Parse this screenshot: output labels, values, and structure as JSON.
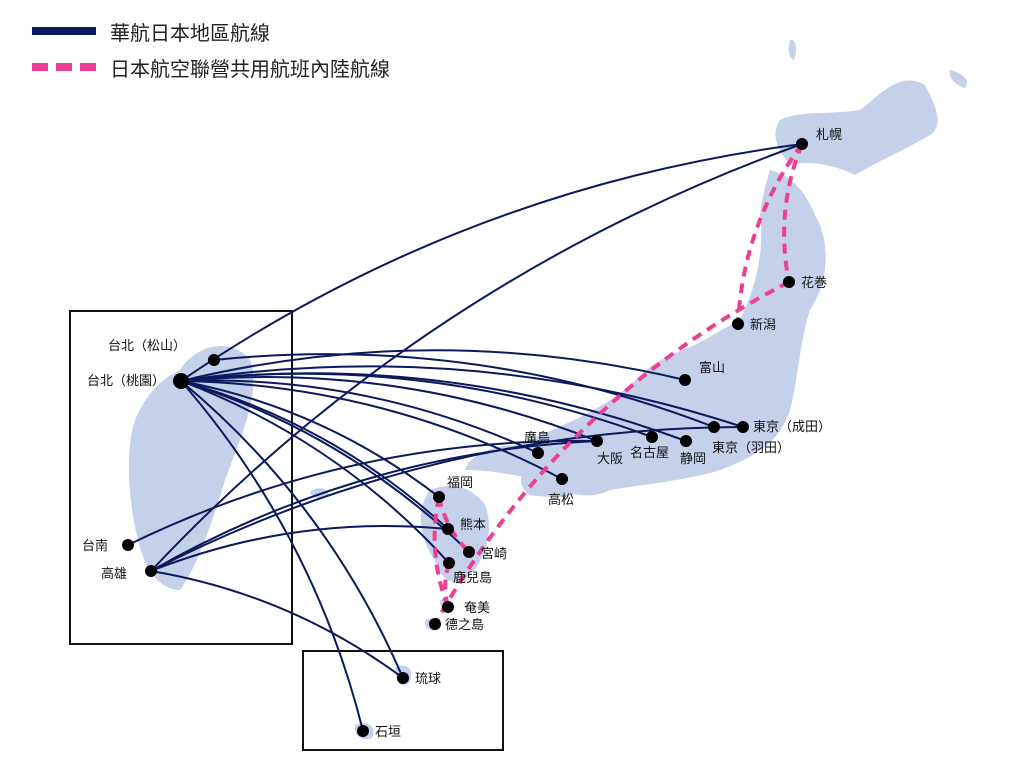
{
  "legend": {
    "cal_label": "華航日本地區航線",
    "jal_label": "日本航空聯營共用航班內陸航線",
    "cal_color": "#0b1a5c",
    "jal_color": "#ec3f93"
  },
  "colors": {
    "land": "#c5d0ea",
    "box": "#111111",
    "city_dot": "#000000"
  },
  "cities": {
    "tpe_songshan": "台北（松山）",
    "tpe_taoyuan": "台北（桃園）",
    "tainan": "台南",
    "kaohsiung": "高雄",
    "okinawa": "琉球",
    "ishigaki": "石垣",
    "sapporo": "札幌",
    "hanamaki": "花巻",
    "niigata": "新潟",
    "toyama": "富山",
    "narita": "東京（成田）",
    "haneda": "東京（羽田）",
    "shizuoka": "静岡",
    "nagoya": "名古屋",
    "osaka": "大阪",
    "hiroshima": "廣島",
    "takamatsu": "高松",
    "fukuoka": "福岡",
    "kumamoto": "熊本",
    "miyazaki": "宮崎",
    "kagoshima": "鹿兒島",
    "amami": "奄美",
    "tokunoshima": "德之島"
  },
  "cal_routes": [
    [
      "tpe_taoyuan",
      "sapporo"
    ],
    [
      "tpe_taoyuan",
      "toyama"
    ],
    [
      "tpe_taoyuan",
      "narita"
    ],
    [
      "tpe_taoyuan",
      "nagoya"
    ],
    [
      "tpe_taoyuan",
      "shizuoka"
    ],
    [
      "tpe_taoyuan",
      "osaka"
    ],
    [
      "tpe_taoyuan",
      "hiroshima"
    ],
    [
      "tpe_taoyuan",
      "takamatsu"
    ],
    [
      "tpe_taoyuan",
      "fukuoka"
    ],
    [
      "tpe_taoyuan",
      "kumamoto"
    ],
    [
      "tpe_taoyuan",
      "miyazaki"
    ],
    [
      "tpe_taoyuan",
      "kagoshima"
    ],
    [
      "tpe_taoyuan",
      "okinawa"
    ],
    [
      "tpe_taoyuan",
      "ishigaki"
    ],
    [
      "tpe_songshan",
      "haneda"
    ],
    [
      "tainan",
      "osaka"
    ],
    [
      "kaohsiung",
      "sapporo"
    ],
    [
      "kaohsiung",
      "narita"
    ],
    [
      "kaohsiung",
      "osaka"
    ],
    [
      "kaohsiung",
      "kumamoto"
    ],
    [
      "kaohsiung",
      "okinawa"
    ]
  ],
  "jal_routes": [
    [
      "sapporo",
      "niigata"
    ],
    [
      "sapporo",
      "hanamaki"
    ],
    [
      "hanamaki",
      "tokunoshima"
    ],
    [
      "fukuoka",
      "miyazaki"
    ],
    [
      "kagoshima",
      "amami"
    ],
    [
      "fukuoka",
      "amami"
    ]
  ]
}
